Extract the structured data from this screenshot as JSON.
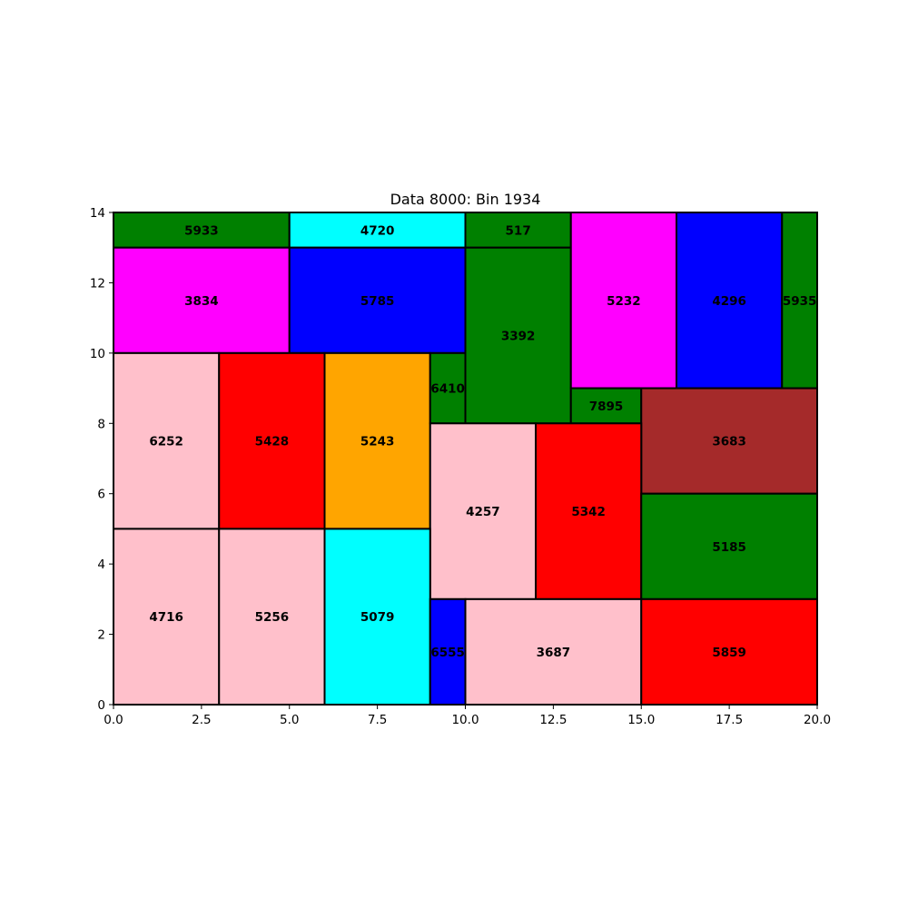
{
  "chart_data": {
    "type": "rectangle-packing",
    "title": "Data 8000: Bin 1934",
    "xlim": [
      0,
      20
    ],
    "ylim": [
      0,
      14
    ],
    "x_ticks": [
      {
        "value": 0,
        "label": "0.0"
      },
      {
        "value": 2.5,
        "label": "2.5"
      },
      {
        "value": 5,
        "label": "5.0"
      },
      {
        "value": 7.5,
        "label": "7.5"
      },
      {
        "value": 10,
        "label": "10.0"
      },
      {
        "value": 12.5,
        "label": "12.5"
      },
      {
        "value": 15,
        "label": "15.0"
      },
      {
        "value": 17.5,
        "label": "17.5"
      },
      {
        "value": 20,
        "label": "20.0"
      }
    ],
    "y_ticks": [
      {
        "value": 0,
        "label": "0"
      },
      {
        "value": 2,
        "label": "2"
      },
      {
        "value": 4,
        "label": "4"
      },
      {
        "value": 6,
        "label": "6"
      },
      {
        "value": 8,
        "label": "8"
      },
      {
        "value": 10,
        "label": "10"
      },
      {
        "value": 12,
        "label": "12"
      },
      {
        "value": 14,
        "label": "14"
      }
    ],
    "grid": false,
    "rectangles": [
      {
        "label": "5933",
        "x": 0,
        "y": 13,
        "w": 5,
        "h": 1,
        "color": "#008000"
      },
      {
        "label": "4720",
        "x": 5,
        "y": 13,
        "w": 5,
        "h": 1,
        "color": "#00ffff"
      },
      {
        "label": "517",
        "x": 10,
        "y": 13,
        "w": 3,
        "h": 1,
        "color": "#008000"
      },
      {
        "label": "3834",
        "x": 0,
        "y": 10,
        "w": 5,
        "h": 3,
        "color": "#ff00ff"
      },
      {
        "label": "5785",
        "x": 5,
        "y": 10,
        "w": 5,
        "h": 3,
        "color": "#0000ff"
      },
      {
        "label": "3392",
        "x": 10,
        "y": 8,
        "w": 3,
        "h": 5,
        "color": "#008000"
      },
      {
        "label": "5232",
        "x": 13,
        "y": 9,
        "w": 3,
        "h": 5,
        "color": "#ff00ff"
      },
      {
        "label": "4296",
        "x": 16,
        "y": 9,
        "w": 3,
        "h": 5,
        "color": "#0000ff"
      },
      {
        "label": "5935",
        "x": 19,
        "y": 9,
        "w": 1,
        "h": 5,
        "color": "#008000"
      },
      {
        "label": "6252",
        "x": 0,
        "y": 5,
        "w": 3,
        "h": 5,
        "color": "#ffc0cb"
      },
      {
        "label": "5428",
        "x": 3,
        "y": 5,
        "w": 3,
        "h": 5,
        "color": "#ff0000"
      },
      {
        "label": "5243",
        "x": 6,
        "y": 5,
        "w": 3,
        "h": 5,
        "color": "#ffa500"
      },
      {
        "label": "6410",
        "x": 9,
        "y": 8,
        "w": 1,
        "h": 2,
        "color": "#008000"
      },
      {
        "label": "7895",
        "x": 13,
        "y": 8,
        "w": 2,
        "h": 1,
        "color": "#008000"
      },
      {
        "label": "3683",
        "x": 15,
        "y": 6,
        "w": 5,
        "h": 3,
        "color": "#a52a2a"
      },
      {
        "label": "4257",
        "x": 9,
        "y": 3,
        "w": 3,
        "h": 5,
        "color": "#ffc0cb"
      },
      {
        "label": "5342",
        "x": 12,
        "y": 3,
        "w": 3,
        "h": 5,
        "color": "#ff0000"
      },
      {
        "label": "5185",
        "x": 15,
        "y": 3,
        "w": 5,
        "h": 3,
        "color": "#008000"
      },
      {
        "label": "4716",
        "x": 0,
        "y": 0,
        "w": 3,
        "h": 5,
        "color": "#ffc0cb"
      },
      {
        "label": "5256",
        "x": 3,
        "y": 0,
        "w": 3,
        "h": 5,
        "color": "#ffc0cb"
      },
      {
        "label": "5079",
        "x": 6,
        "y": 0,
        "w": 3,
        "h": 5,
        "color": "#00ffff"
      },
      {
        "label": "6555",
        "x": 9,
        "y": 0,
        "w": 1,
        "h": 3,
        "color": "#0000ff"
      },
      {
        "label": "3687",
        "x": 10,
        "y": 0,
        "w": 5,
        "h": 3,
        "color": "#ffc0cb"
      },
      {
        "label": "5859",
        "x": 15,
        "y": 0,
        "w": 5,
        "h": 3,
        "color": "#ff0000"
      }
    ]
  }
}
